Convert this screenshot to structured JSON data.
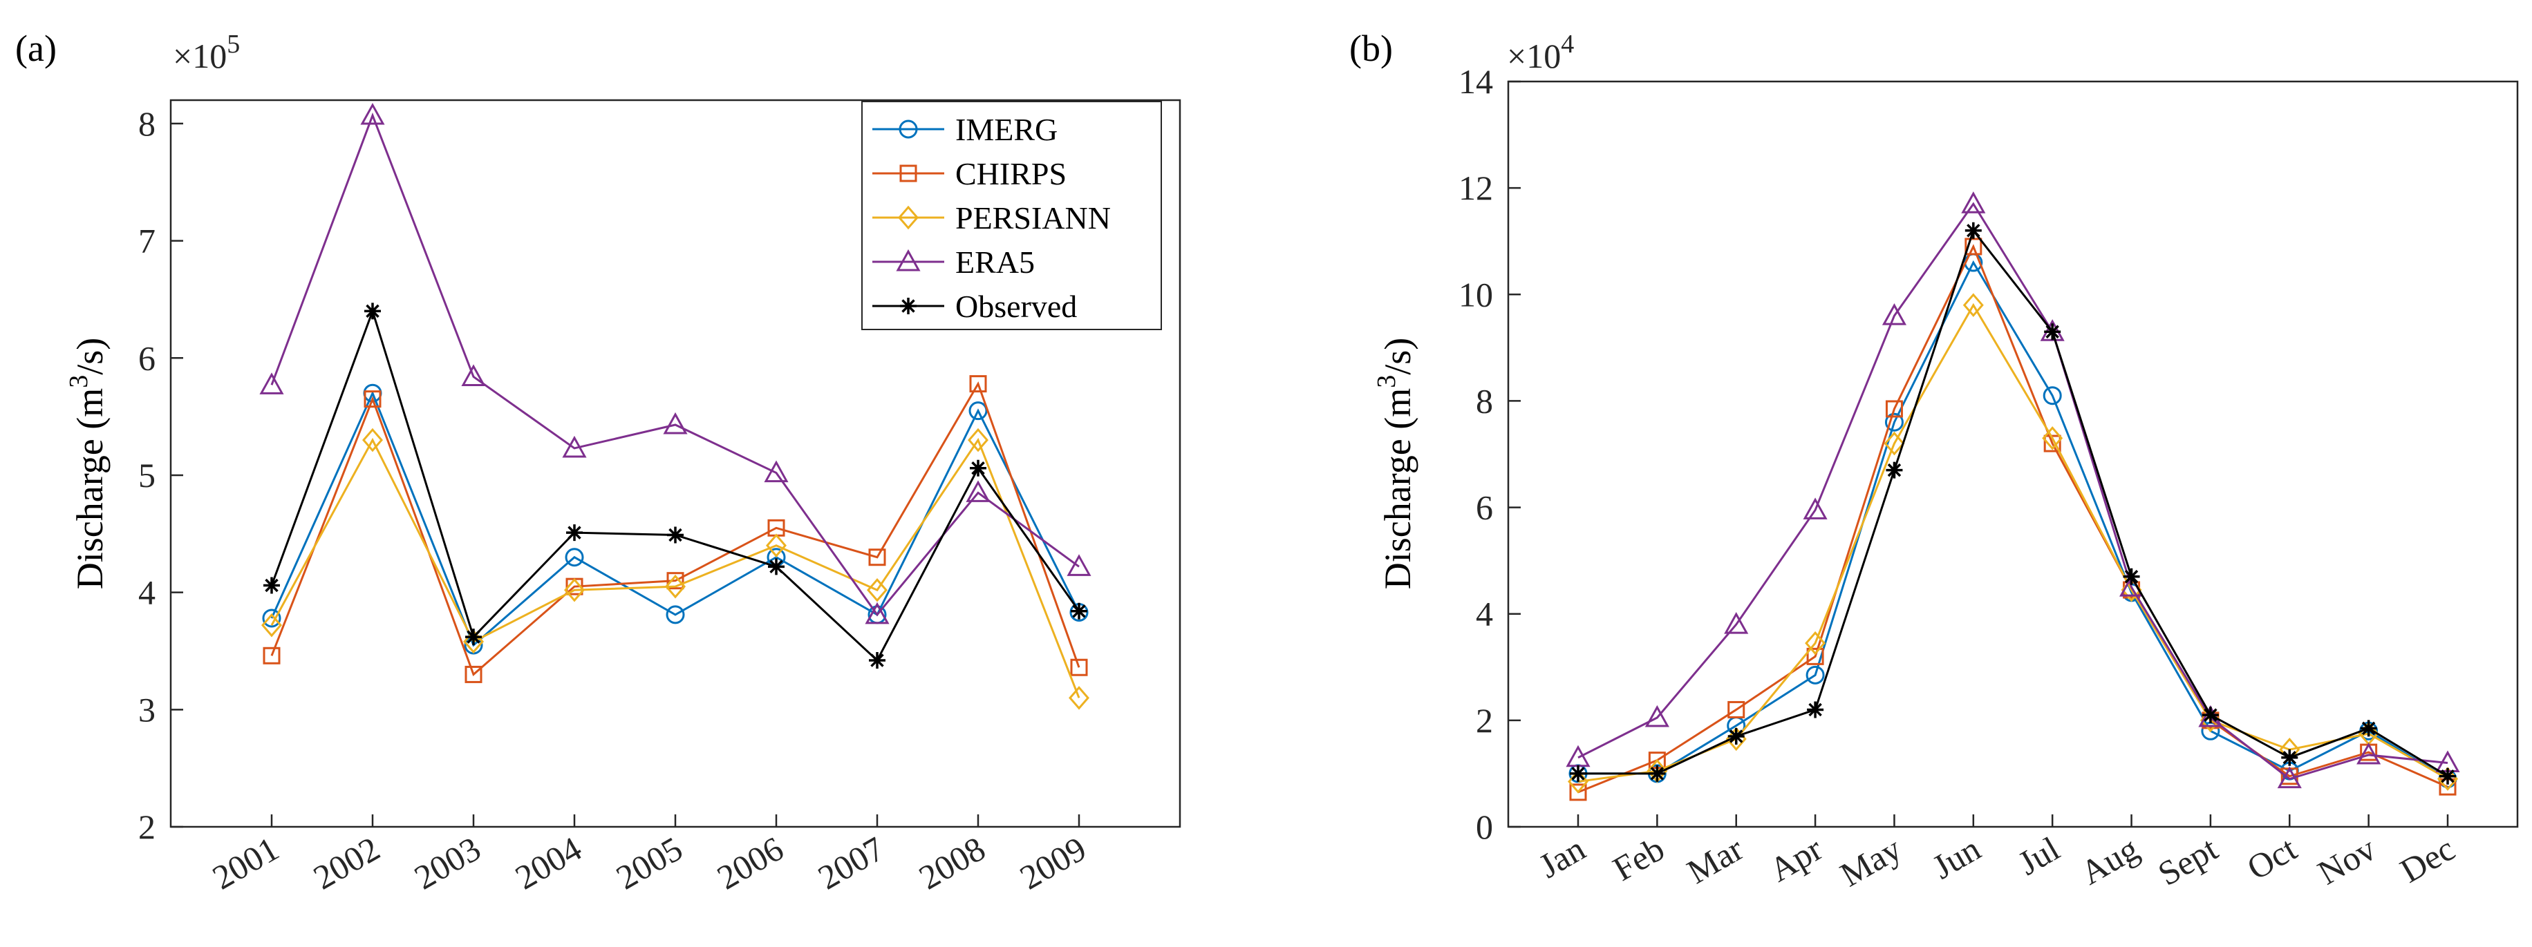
{
  "panel_a_label": "(a)",
  "panel_b_label": "(b)",
  "colors": {
    "IMERG": "#0072BD",
    "CHIRPS": "#D95319",
    "PERSIANN": "#EDB120",
    "ERA5": "#7E2F8E",
    "Observed": "#000000"
  },
  "chart_data": [
    {
      "type": "line",
      "panel": "(a)",
      "ylabel_main": "Discharge (m",
      "ylabel_sup": "3",
      "ylabel_end": "/s)",
      "exponent_base": "×10",
      "exponent_power": "5",
      "ylim": [
        2,
        8.2
      ],
      "yticks": [
        2,
        3,
        4,
        5,
        6,
        7,
        8
      ],
      "categories": [
        "2001",
        "2002",
        "2003",
        "2004",
        "2005",
        "2006",
        "2007",
        "2008",
        "2009"
      ],
      "legend_position": "top-right",
      "series": [
        {
          "name": "IMERG",
          "marker": "circle",
          "values": [
            3.78,
            5.7,
            3.55,
            4.3,
            3.81,
            4.3,
            3.81,
            5.55,
            3.83
          ]
        },
        {
          "name": "CHIRPS",
          "marker": "square",
          "values": [
            3.46,
            5.65,
            3.3,
            4.05,
            4.1,
            4.55,
            4.3,
            5.78,
            3.36
          ]
        },
        {
          "name": "PERSIANN",
          "marker": "diamond",
          "values": [
            3.72,
            5.3,
            3.58,
            4.02,
            4.05,
            4.4,
            4.02,
            5.3,
            3.1
          ]
        },
        {
          "name": "ERA5",
          "marker": "triangle",
          "values": [
            5.77,
            8.07,
            5.84,
            5.23,
            5.43,
            5.02,
            3.81,
            4.85,
            4.22
          ]
        },
        {
          "name": "Observed",
          "marker": "asterisk",
          "values": [
            4.06,
            6.4,
            3.62,
            4.51,
            4.49,
            4.22,
            3.42,
            5.06,
            3.84
          ]
        }
      ]
    },
    {
      "type": "line",
      "panel": "(b)",
      "ylabel_main": "Discharge (m",
      "ylabel_sup": "3",
      "ylabel_end": "/s)",
      "exponent_base": "×10",
      "exponent_power": "4",
      "ylim": [
        0,
        14
      ],
      "yticks": [
        0,
        2,
        4,
        6,
        8,
        10,
        12,
        14
      ],
      "categories": [
        "Jan",
        "Feb",
        "Mar",
        "Apr",
        "May",
        "Jun",
        "Jul",
        "Aug",
        "Sept",
        "Oct",
        "Nov",
        "Dec"
      ],
      "series": [
        {
          "name": "IMERG",
          "marker": "circle",
          "values": [
            1.0,
            1.0,
            1.9,
            2.85,
            7.6,
            10.6,
            8.1,
            4.4,
            1.8,
            1.05,
            1.8,
            0.9
          ]
        },
        {
          "name": "CHIRPS",
          "marker": "square",
          "values": [
            0.65,
            1.25,
            2.2,
            3.2,
            7.85,
            10.9,
            7.2,
            4.45,
            2.0,
            0.95,
            1.4,
            0.75
          ]
        },
        {
          "name": "PERSIANN",
          "marker": "diamond",
          "values": [
            0.85,
            1.05,
            1.65,
            3.45,
            7.2,
            9.8,
            7.3,
            4.45,
            2.0,
            1.45,
            1.75,
            0.9
          ]
        },
        {
          "name": "ERA5",
          "marker": "triangle",
          "values": [
            1.3,
            2.05,
            3.8,
            5.95,
            9.6,
            11.7,
            9.3,
            4.5,
            2.05,
            0.9,
            1.35,
            1.2
          ]
        },
        {
          "name": "Observed",
          "marker": "asterisk",
          "values": [
            1.0,
            1.0,
            1.7,
            2.2,
            6.7,
            11.2,
            9.3,
            4.7,
            2.1,
            1.3,
            1.85,
            0.95
          ]
        }
      ]
    }
  ]
}
